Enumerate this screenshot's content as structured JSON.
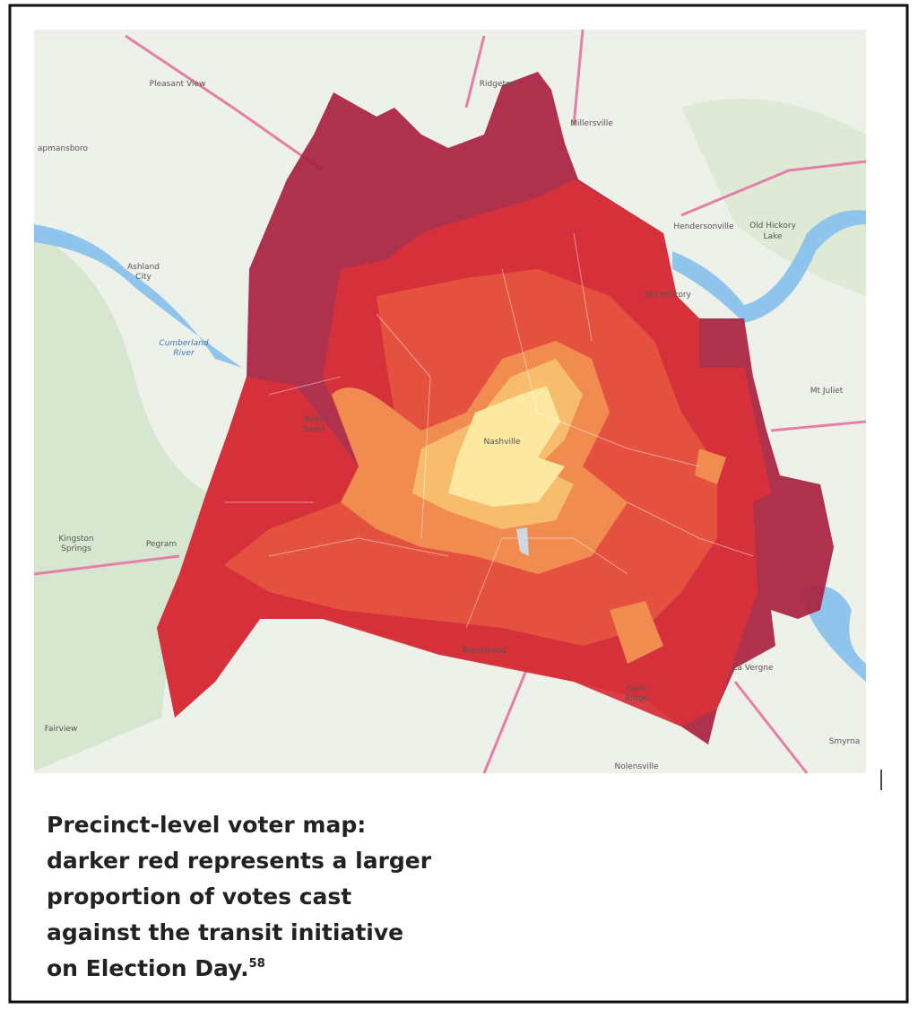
{
  "map": {
    "places": [
      "Pleasant View",
      "Ridgetop",
      "Millersville",
      "apmansboro",
      "Hendersonville",
      "Old Hickory",
      "Lake",
      "Old Hickory",
      "Ashland",
      "City",
      "Cumberland",
      "River",
      "Mt Juliet",
      "Bells",
      "Bend",
      "Nashville",
      "Kingston",
      "Springs",
      "Pegram",
      "Fairview",
      "Brentwood",
      "La Vergne",
      "Cane",
      "Ridge",
      "Smyrna",
      "Nolensville"
    ]
  },
  "caption": {
    "lines": [
      "Precinct-level voter map:",
      "darker red represents a larger",
      "proportion of votes cast",
      "against the transit initiative",
      "on Election Day."
    ],
    "footnote": "58"
  }
}
